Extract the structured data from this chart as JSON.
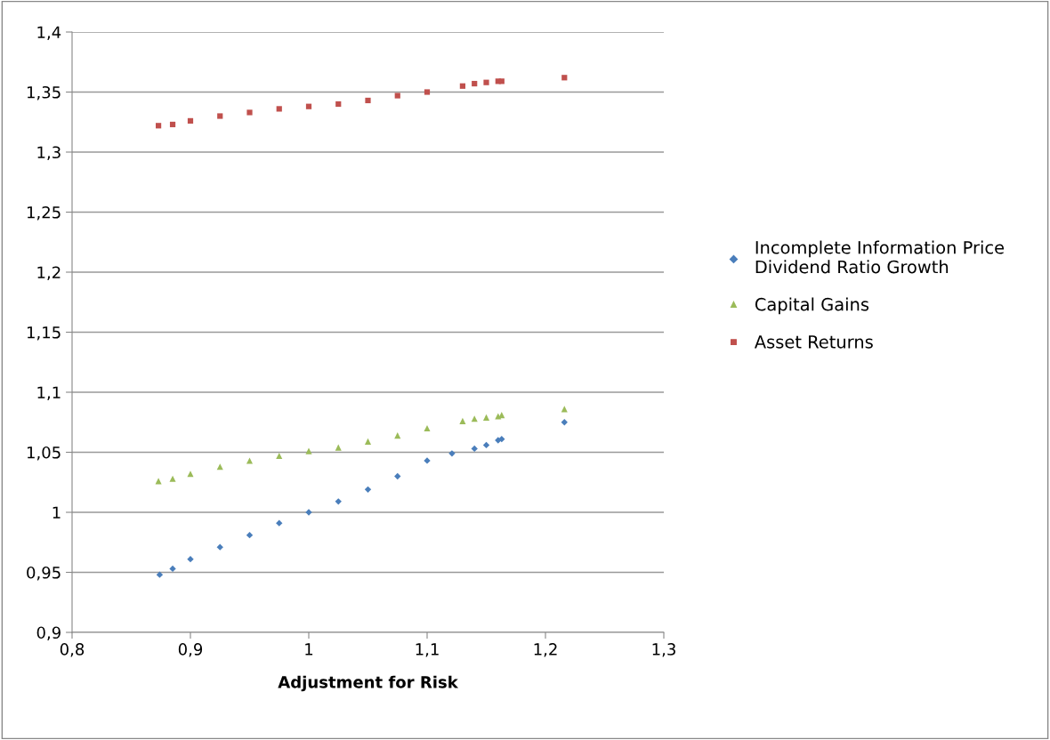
{
  "chart_data": {
    "type": "scatter",
    "xlabel": "Adjustment for Risk",
    "xlim": [
      0.8,
      1.3
    ],
    "xticks": [
      {
        "value": 0.8,
        "label": "0,8"
      },
      {
        "value": 0.9,
        "label": "0,9"
      },
      {
        "value": 1.0,
        "label": "1"
      },
      {
        "value": 1.1,
        "label": "1,1"
      },
      {
        "value": 1.2,
        "label": "1,2"
      },
      {
        "value": 1.3,
        "label": "1,3"
      }
    ],
    "ylim": [
      0.9,
      1.4
    ],
    "yticks": [
      {
        "value": 0.9,
        "label": "0,9"
      },
      {
        "value": 0.95,
        "label": "0,95"
      },
      {
        "value": 1.0,
        "label": "1"
      },
      {
        "value": 1.05,
        "label": "1,05"
      },
      {
        "value": 1.1,
        "label": "1,1"
      },
      {
        "value": 1.15,
        "label": "1,15"
      },
      {
        "value": 1.2,
        "label": "1,2"
      },
      {
        "value": 1.25,
        "label": "1,25"
      },
      {
        "value": 1.3,
        "label": "1,3"
      },
      {
        "value": 1.35,
        "label": "1,35"
      },
      {
        "value": 1.4,
        "label": "1,4"
      }
    ],
    "grid": "y",
    "legend": "right",
    "series": [
      {
        "name": "Incomplete Information Price Dividend Ratio Growth",
        "color": "#4a7ebb",
        "marker": "diamond",
        "x": [
          0.874,
          0.885,
          0.9,
          0.925,
          0.95,
          0.975,
          1.0,
          1.025,
          1.05,
          1.075,
          1.1,
          1.121,
          1.14,
          1.15,
          1.16,
          1.163,
          1.216
        ],
        "values": [
          0.948,
          0.953,
          0.961,
          0.971,
          0.981,
          0.991,
          1.0,
          1.009,
          1.019,
          1.03,
          1.043,
          1.049,
          1.053,
          1.056,
          1.06,
          1.061,
          1.075
        ]
      },
      {
        "name": "Capital Gains",
        "color": "#9bbb59",
        "marker": "triangle",
        "x": [
          0.873,
          0.885,
          0.9,
          0.925,
          0.95,
          0.975,
          1.0,
          1.025,
          1.05,
          1.075,
          1.1,
          1.13,
          1.14,
          1.15,
          1.16,
          1.163,
          1.216
        ],
        "values": [
          1.026,
          1.028,
          1.032,
          1.038,
          1.043,
          1.047,
          1.051,
          1.054,
          1.059,
          1.064,
          1.07,
          1.076,
          1.078,
          1.079,
          1.08,
          1.081,
          1.086
        ]
      },
      {
        "name": "Asset Returns",
        "color": "#c0504d",
        "marker": "square",
        "x": [
          0.873,
          0.885,
          0.9,
          0.925,
          0.95,
          0.975,
          1.0,
          1.025,
          1.05,
          1.075,
          1.1,
          1.13,
          1.14,
          1.15,
          1.16,
          1.163,
          1.216
        ],
        "values": [
          1.322,
          1.323,
          1.326,
          1.33,
          1.333,
          1.336,
          1.338,
          1.34,
          1.343,
          1.347,
          1.35,
          1.355,
          1.357,
          1.358,
          1.359,
          1.359,
          1.362
        ]
      }
    ]
  }
}
